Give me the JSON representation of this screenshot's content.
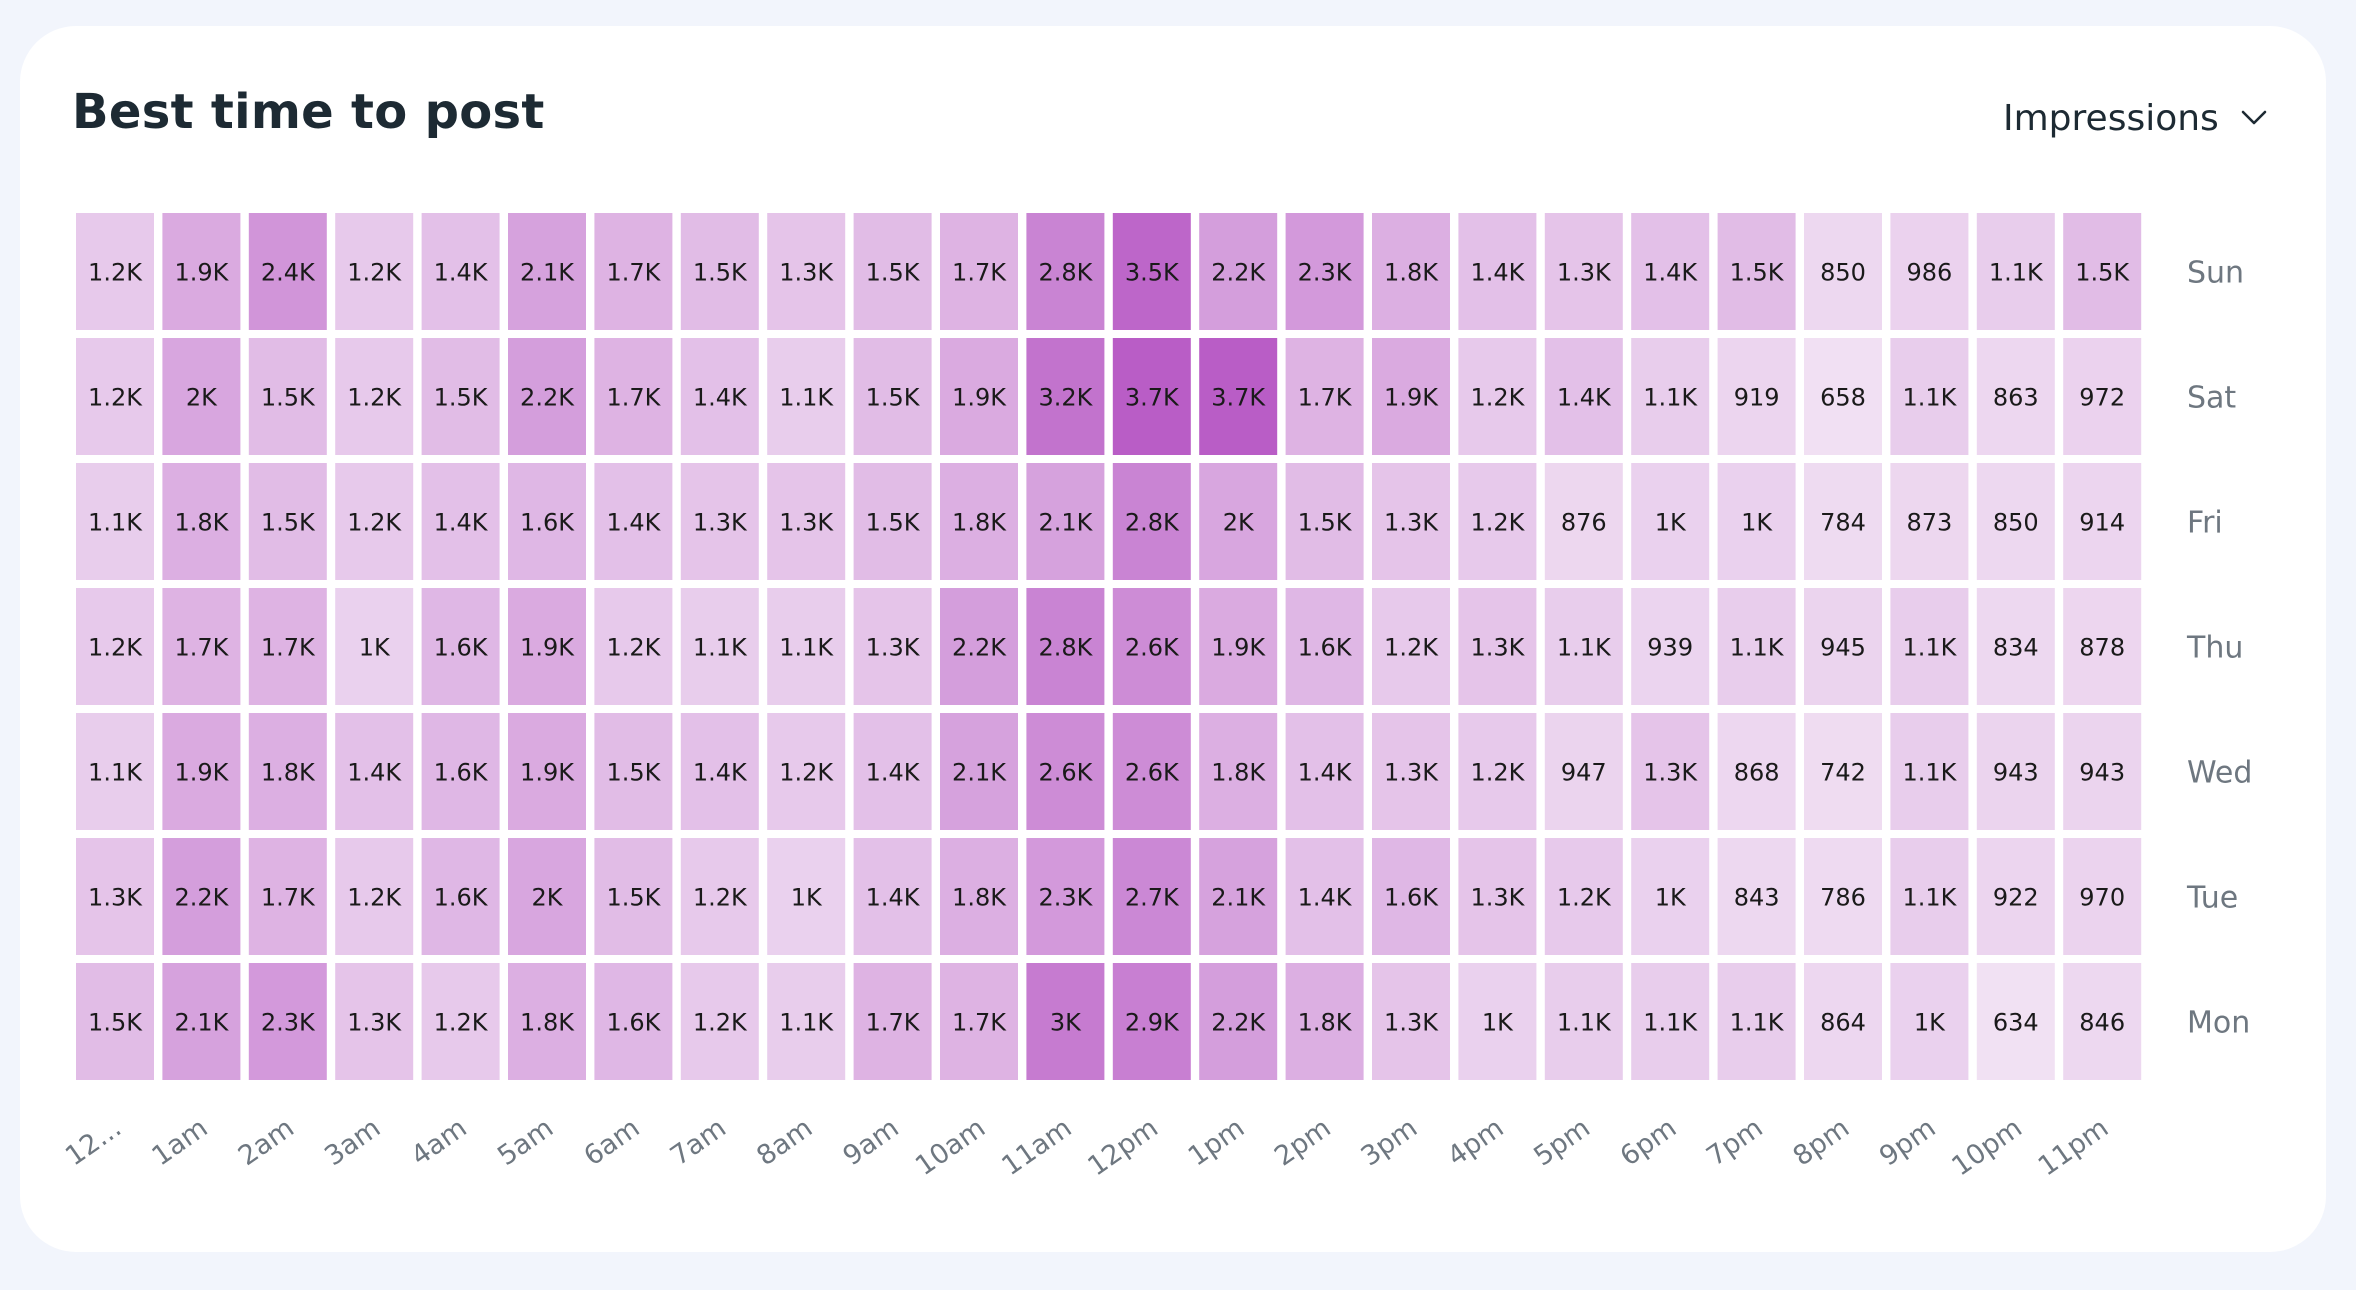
{
  "card": {
    "title": "Best time to post",
    "metric_selector": {
      "selected": "Impressions",
      "icon": "chevron-down-icon"
    }
  },
  "chart_data": {
    "type": "heatmap",
    "title": "Best time to post",
    "x_categories": [
      "12...",
      "1am",
      "2am",
      "3am",
      "4am",
      "5am",
      "6am",
      "7am",
      "8am",
      "9am",
      "10am",
      "11am",
      "12pm",
      "1pm",
      "2pm",
      "3pm",
      "4pm",
      "5pm",
      "6pm",
      "7pm",
      "8pm",
      "9pm",
      "10pm",
      "11pm"
    ],
    "y_categories": [
      "Sun",
      "Sat",
      "Fri",
      "Thu",
      "Wed",
      "Tue",
      "Mon"
    ],
    "values": [
      [
        1200,
        1900,
        2400,
        1200,
        1400,
        2100,
        1700,
        1500,
        1300,
        1500,
        1700,
        2800,
        3500,
        2200,
        2300,
        1800,
        1400,
        1300,
        1400,
        1500,
        850,
        986,
        1100,
        1500
      ],
      [
        1200,
        2000,
        1500,
        1200,
        1500,
        2200,
        1700,
        1400,
        1100,
        1500,
        1900,
        3200,
        3700,
        3700,
        1700,
        1900,
        1200,
        1400,
        1100,
        919,
        658,
        1100,
        863,
        972
      ],
      [
        1100,
        1800,
        1500,
        1200,
        1400,
        1600,
        1400,
        1300,
        1300,
        1500,
        1800,
        2100,
        2800,
        2000,
        1500,
        1300,
        1200,
        876,
        1000,
        1000,
        784,
        873,
        850,
        914
      ],
      [
        1200,
        1700,
        1700,
        1000,
        1600,
        1900,
        1200,
        1100,
        1100,
        1300,
        2200,
        2800,
        2600,
        1900,
        1600,
        1200,
        1300,
        1100,
        939,
        1100,
        945,
        1100,
        834,
        878
      ],
      [
        1100,
        1900,
        1800,
        1400,
        1600,
        1900,
        1500,
        1400,
        1200,
        1400,
        2100,
        2600,
        2600,
        1800,
        1400,
        1300,
        1200,
        947,
        1300,
        868,
        742,
        1100,
        943,
        943
      ],
      [
        1300,
        2200,
        1700,
        1200,
        1600,
        2000,
        1500,
        1200,
        1000,
        1400,
        1800,
        2300,
        2700,
        2100,
        1400,
        1600,
        1300,
        1200,
        1000,
        843,
        786,
        1100,
        922,
        970
      ],
      [
        1500,
        2100,
        2300,
        1300,
        1200,
        1800,
        1600,
        1200,
        1100,
        1700,
        1700,
        3000,
        2900,
        2200,
        1800,
        1300,
        1000,
        1100,
        1100,
        1100,
        864,
        1000,
        634,
        846
      ]
    ],
    "labels": [
      [
        "1.2K",
        "1.9K",
        "2.4K",
        "1.2K",
        "1.4K",
        "2.1K",
        "1.7K",
        "1.5K",
        "1.3K",
        "1.5K",
        "1.7K",
        "2.8K",
        "3.5K",
        "2.2K",
        "2.3K",
        "1.8K",
        "1.4K",
        "1.3K",
        "1.4K",
        "1.5K",
        "850",
        "986",
        "1.1K",
        "1.5K"
      ],
      [
        "1.2K",
        "2K",
        "1.5K",
        "1.2K",
        "1.5K",
        "2.2K",
        "1.7K",
        "1.4K",
        "1.1K",
        "1.5K",
        "1.9K",
        "3.2K",
        "3.7K",
        "3.7K",
        "1.7K",
        "1.9K",
        "1.2K",
        "1.4K",
        "1.1K",
        "919",
        "658",
        "1.1K",
        "863",
        "972"
      ],
      [
        "1.1K",
        "1.8K",
        "1.5K",
        "1.2K",
        "1.4K",
        "1.6K",
        "1.4K",
        "1.3K",
        "1.3K",
        "1.5K",
        "1.8K",
        "2.1K",
        "2.8K",
        "2K",
        "1.5K",
        "1.3K",
        "1.2K",
        "876",
        "1K",
        "1K",
        "784",
        "873",
        "850",
        "914"
      ],
      [
        "1.2K",
        "1.7K",
        "1.7K",
        "1K",
        "1.6K",
        "1.9K",
        "1.2K",
        "1.1K",
        "1.1K",
        "1.3K",
        "2.2K",
        "2.8K",
        "2.6K",
        "1.9K",
        "1.6K",
        "1.2K",
        "1.3K",
        "1.1K",
        "939",
        "1.1K",
        "945",
        "1.1K",
        "834",
        "878"
      ],
      [
        "1.1K",
        "1.9K",
        "1.8K",
        "1.4K",
        "1.6K",
        "1.9K",
        "1.5K",
        "1.4K",
        "1.2K",
        "1.4K",
        "2.1K",
        "2.6K",
        "2.6K",
        "1.8K",
        "1.4K",
        "1.3K",
        "1.2K",
        "947",
        "1.3K",
        "868",
        "742",
        "1.1K",
        "943",
        "943"
      ],
      [
        "1.3K",
        "2.2K",
        "1.7K",
        "1.2K",
        "1.6K",
        "2K",
        "1.5K",
        "1.2K",
        "1K",
        "1.4K",
        "1.8K",
        "2.3K",
        "2.7K",
        "2.1K",
        "1.4K",
        "1.6K",
        "1.3K",
        "1.2K",
        "1K",
        "843",
        "786",
        "1.1K",
        "922",
        "970"
      ],
      [
        "1.5K",
        "2.1K",
        "2.3K",
        "1.3K",
        "1.2K",
        "1.8K",
        "1.6K",
        "1.2K",
        "1.1K",
        "1.7K",
        "1.7K",
        "3K",
        "2.9K",
        "2.2K",
        "1.8K",
        "1.3K",
        "1K",
        "1.1K",
        "1.1K",
        "1.1K",
        "864",
        "1K",
        "634",
        "846"
      ]
    ],
    "color_range": [
      "#f1e1f3",
      "#b95dc6"
    ],
    "value_range": [
      634,
      3700
    ]
  }
}
